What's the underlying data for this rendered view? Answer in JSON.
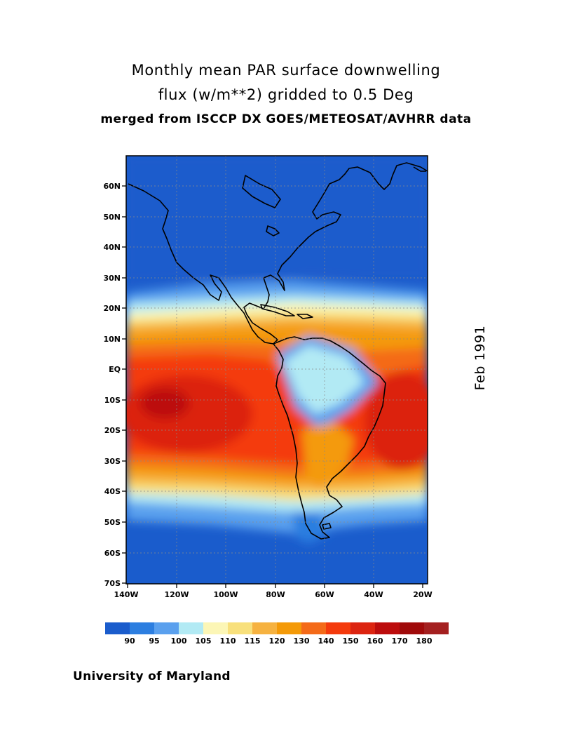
{
  "title": {
    "line1": "Monthly mean PAR surface downwelling",
    "line2": "flux (w/m**2) gridded to 0.5 Deg",
    "line3": "merged from ISCCP DX GOES/METEOSAT/AVHRR data"
  },
  "date_label": "Feb 1991",
  "footer": "University of Maryland",
  "map": {
    "lat_range": [
      -70,
      70
    ],
    "lon_range": [
      -140,
      -18
    ],
    "lat_ticks": [
      "60N",
      "50N",
      "40N",
      "30N",
      "20N",
      "10N",
      "EQ",
      "10S",
      "20S",
      "30S",
      "40S",
      "50S",
      "60S",
      "70S"
    ],
    "lon_ticks": [
      "140W",
      "120W",
      "100W",
      "80W",
      "60W",
      "40W",
      "20W"
    ]
  },
  "colorbar": {
    "colors": [
      "#1a5ccc",
      "#2c7ee0",
      "#5aa0ee",
      "#b2eaf4",
      "#fcf6b6",
      "#f8e07c",
      "#f6b240",
      "#f49a08",
      "#f46a18",
      "#f43a0c",
      "#dc2410",
      "#bc0c0c",
      "#a00a0a",
      "#a42020"
    ],
    "labels": [
      "90",
      "95",
      "100",
      "105",
      "110",
      "115",
      "120",
      "130",
      "140",
      "150",
      "160",
      "170",
      "180"
    ]
  }
}
